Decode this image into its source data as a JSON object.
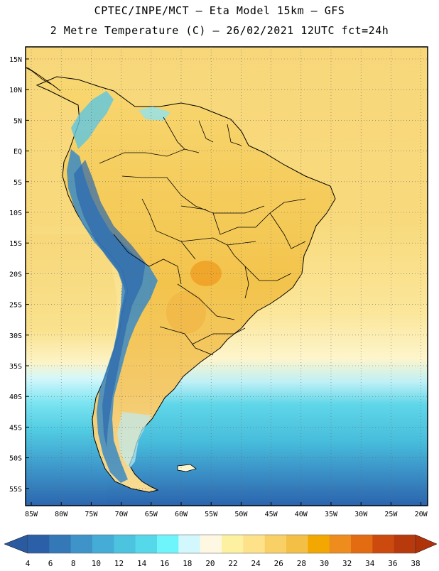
{
  "title_line1": "CPTEC/INPE/MCT –  Eta Model 15km – GFS",
  "title_line2": "2 Metre Temperature (C) – 26/02/2021 12UTC fct=24h",
  "lat_labels": [
    "15N",
    "10N",
    "5N",
    "EQ",
    "5S",
    "10S",
    "15S",
    "20S",
    "25S",
    "30S",
    "35S",
    "40S",
    "45S",
    "50S",
    "55S"
  ],
  "lon_labels": [
    "85W",
    "80W",
    "75W",
    "70W",
    "65W",
    "60W",
    "55W",
    "50W",
    "45W",
    "40W",
    "35W",
    "30W",
    "25W",
    "20W"
  ],
  "colorbar": {
    "values": [
      4,
      6,
      8,
      10,
      12,
      14,
      16,
      18,
      20,
      22,
      24,
      26,
      28,
      30,
      32,
      34,
      36,
      38
    ],
    "colors": [
      "#2b60a8",
      "#3578b8",
      "#3e94c8",
      "#44acd6",
      "#4cc4e0",
      "#55d8ea",
      "#6ef4fb",
      "#d2f8fd",
      "#fef8e3",
      "#fdf0a0",
      "#fde28a",
      "#f8d065",
      "#f3c045",
      "#f2a800",
      "#ee8c1e",
      "#e36c12",
      "#cc4a0e",
      "#b83a0c"
    ],
    "left_color": "#2a5aa0",
    "right_color": "#b03208"
  },
  "background_colors": {
    "land_warm": "#f3c64f",
    "land_hot": "#efa024",
    "ocean_tropical": "#f8db7a",
    "ocean_mid": "#fdf2b0",
    "ocean_cool": "#5cd3e6",
    "ocean_cold": "#2c6bb0",
    "andes": "#3a8ac4"
  }
}
